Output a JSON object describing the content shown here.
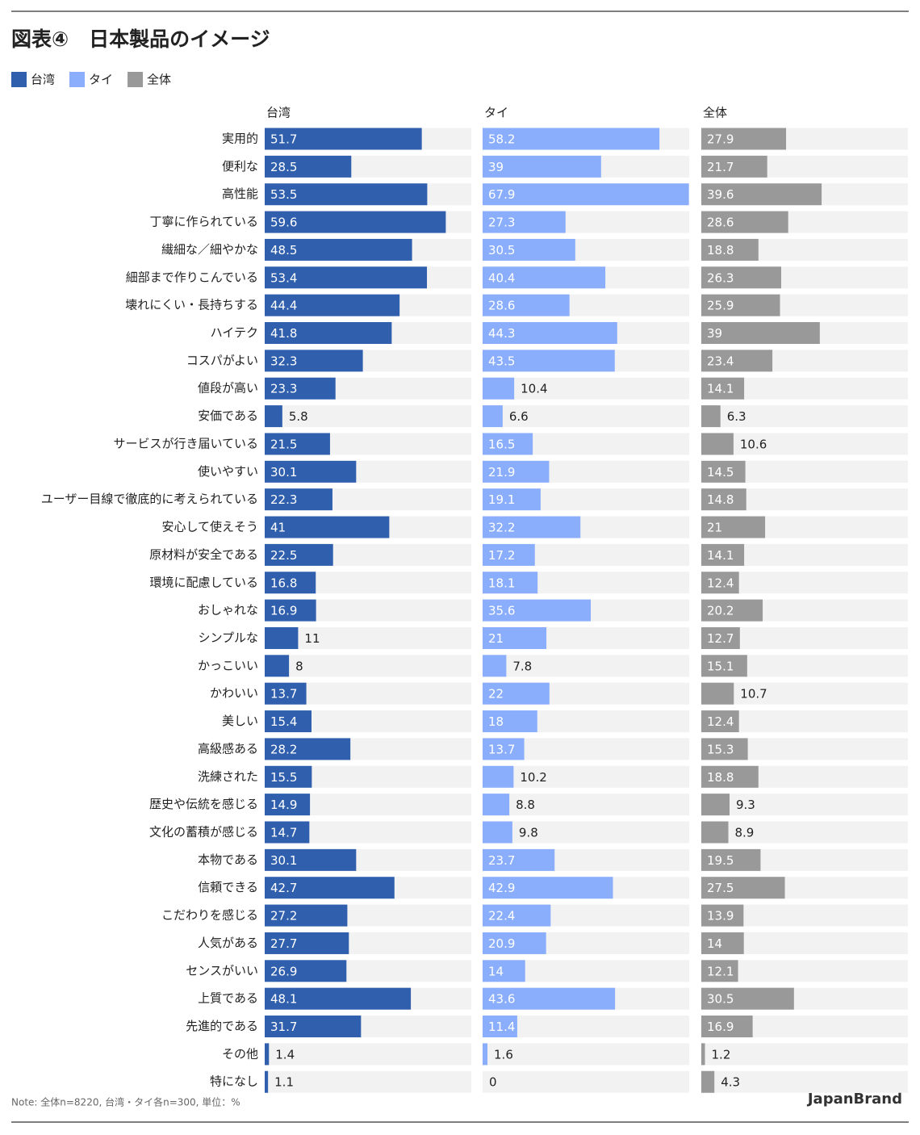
{
  "chart_data": {
    "type": "bar",
    "title": "図表④　日本製品のイメージ",
    "categories": [
      "実用的",
      "便利な",
      "高性能",
      "丁寧に作られている",
      "繊細な／細やかな",
      "細部まで作りこんでいる",
      "壊れにくい・長持ちする",
      "ハイテク",
      "コスパがよい",
      "値段が高い",
      "安価である",
      "サービスが行き届いている",
      "使いやすい",
      "ユーザー目線で徹底的に考えられている",
      "安心して使えそう",
      "原材料が安全である",
      "環境に配慮している",
      "おしゃれな",
      "シンプルな",
      "かっこいい",
      "かわいい",
      "美しい",
      "高級感ある",
      "洗練された",
      "歴史や伝統を感じる",
      "文化の蓄積が感じる",
      "本物である",
      "信頼できる",
      "こだわりを感じる",
      "人気がある",
      "センスがいい",
      "上質である",
      "先進的である",
      "その他",
      "特になし"
    ],
    "series": [
      {
        "name": "台湾",
        "color": "#2f5fad",
        "values": [
          51.7,
          28.5,
          53.5,
          59.6,
          48.5,
          53.4,
          44.4,
          41.8,
          32.3,
          23.3,
          5.8,
          21.5,
          30.1,
          22.3,
          41,
          22.5,
          16.8,
          16.9,
          11,
          8,
          13.7,
          15.4,
          28.2,
          15.5,
          14.9,
          14.7,
          30.1,
          42.7,
          27.2,
          27.7,
          26.9,
          48.1,
          31.7,
          1.4,
          1.1
        ]
      },
      {
        "name": "タイ",
        "color": "#8aaefc",
        "values": [
          58.2,
          39,
          67.9,
          27.3,
          30.5,
          40.4,
          28.6,
          44.3,
          43.5,
          10.4,
          6.6,
          16.5,
          21.9,
          19.1,
          32.2,
          17.2,
          18.1,
          35.6,
          21,
          7.8,
          22,
          18,
          13.7,
          10.2,
          8.8,
          9.8,
          23.7,
          42.9,
          22.4,
          20.9,
          14,
          43.6,
          11.4,
          1.6,
          0
        ]
      },
      {
        "name": "全体",
        "color": "#999999",
        "values": [
          27.9,
          21.7,
          39.6,
          28.6,
          18.8,
          26.3,
          25.9,
          39,
          23.4,
          14.1,
          6.3,
          10.6,
          14.5,
          14.8,
          21,
          14.1,
          12.4,
          20.2,
          12.7,
          15.1,
          10.7,
          12.4,
          15.3,
          18.8,
          9.3,
          8.9,
          19.5,
          27.5,
          13.9,
          14,
          12.1,
          30.5,
          16.9,
          1.2,
          4.3
        ]
      }
    ],
    "xlim": [
      0,
      68
    ],
    "note": "Note: 全体n=8220, 台湾・タイ各n=300, 単位：%",
    "source": "JapanBrand"
  }
}
